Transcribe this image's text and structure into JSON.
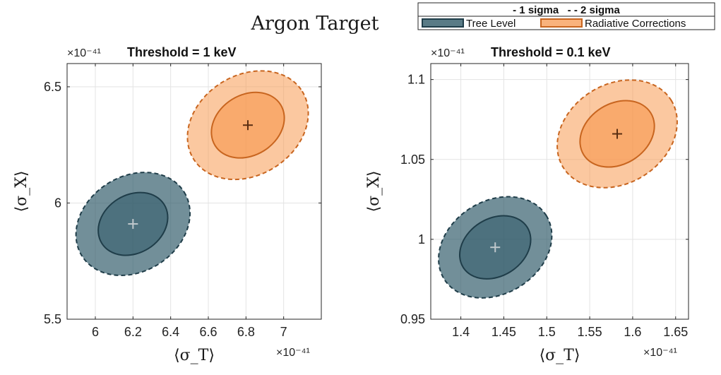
{
  "figure": {
    "title": "Argon Target"
  },
  "legend": {
    "header": "- 1 sigma   - - 2 sigma",
    "entries": [
      "Tree Level",
      "Radiative Corrections"
    ],
    "position": "top-right"
  },
  "colors": {
    "tree_fill": "#2f5a68",
    "tree_edge": "#1f3d49",
    "tree_marker": "#c0c8cc",
    "rad_fill": "#f79a52",
    "rad_edge": "#c8651f",
    "rad_marker": "#5a2e12",
    "grid": "#e3e3e3",
    "axis": "#262626"
  },
  "chart_data": [
    {
      "type": "scatter",
      "title": "Threshold = 1 keV",
      "xlabel": "⟨σ_T⟩",
      "ylabel": "⟨σ_X⟩",
      "x_exponent": "×10⁻⁴¹",
      "y_exponent": "×10⁻⁴¹",
      "xlim": [
        5.85,
        7.2
      ],
      "ylim": [
        5.5,
        6.6
      ],
      "xticks": [
        6,
        6.2,
        6.4,
        6.6,
        6.8,
        7
      ],
      "xtick_labels": [
        "6",
        "6.2",
        "6.4",
        "6.6",
        "6.8",
        "7"
      ],
      "yticks": [
        5.5,
        6,
        6.5
      ],
      "ytick_labels": [
        "5.5",
        "6",
        "6.5"
      ],
      "grid": true,
      "series": [
        {
          "name": "Tree Level",
          "center": [
            6.2,
            5.91
          ],
          "sigma1": {
            "dx": 0.195,
            "dy": 0.125,
            "angle_deg": -32
          },
          "sigma2": {
            "dx": 0.32,
            "dy": 0.205,
            "angle_deg": -32
          }
        },
        {
          "name": "Radiative Corrections",
          "center": [
            6.81,
            6.335
          ],
          "sigma1": {
            "dx": 0.205,
            "dy": 0.13,
            "angle_deg": -32
          },
          "sigma2": {
            "dx": 0.34,
            "dy": 0.215,
            "angle_deg": -32
          }
        }
      ]
    },
    {
      "type": "scatter",
      "title": "Threshold = 0.1 keV",
      "xlabel": "⟨σ_T⟩",
      "ylabel": "⟨σ_X⟩",
      "x_exponent": "×10⁻⁴¹",
      "y_exponent": "×10⁻⁴¹",
      "xlim": [
        1.365,
        1.665
      ],
      "ylim": [
        0.95,
        1.11
      ],
      "xticks": [
        1.4,
        1.45,
        1.5,
        1.55,
        1.6,
        1.65
      ],
      "xtick_labels": [
        "1.4",
        "1.45",
        "1.5",
        "1.55",
        "1.6",
        "1.65"
      ],
      "yticks": [
        0.95,
        1,
        1.05,
        1.1
      ],
      "ytick_labels": [
        "0.95",
        "1",
        "1.05",
        "1.1"
      ],
      "grid": true,
      "series": [
        {
          "name": "Tree Level",
          "center": [
            1.44,
            0.995
          ],
          "sigma1": {
            "dx": 0.044,
            "dy": 0.018,
            "angle_deg": -32
          },
          "sigma2": {
            "dx": 0.07,
            "dy": 0.029,
            "angle_deg": -32
          }
        },
        {
          "name": "Radiative Corrections",
          "center": [
            1.582,
            1.066
          ],
          "sigma1": {
            "dx": 0.046,
            "dy": 0.019,
            "angle_deg": -32
          },
          "sigma2": {
            "dx": 0.074,
            "dy": 0.031,
            "angle_deg": -32
          }
        }
      ]
    }
  ]
}
